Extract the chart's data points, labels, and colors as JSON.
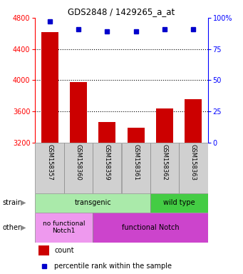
{
  "title": "GDS2848 / 1429265_a_at",
  "samples": [
    "GSM158357",
    "GSM158360",
    "GSM158359",
    "GSM158361",
    "GSM158362",
    "GSM158363"
  ],
  "counts": [
    4620,
    3980,
    3460,
    3390,
    3640,
    3760
  ],
  "percentiles": [
    97,
    91,
    89,
    89,
    91,
    91
  ],
  "ylim_left": [
    3200,
    4800
  ],
  "ylim_right": [
    0,
    100
  ],
  "yticks_left": [
    3200,
    3600,
    4000,
    4400,
    4800
  ],
  "yticks_right": [
    0,
    25,
    50,
    75,
    100
  ],
  "bar_color": "#cc0000",
  "dot_color": "#0000cc",
  "strain_transgenic_color": "#aaeaaa",
  "strain_wildtype_color": "#44cc44",
  "other_nofunc_color": "#ee99ee",
  "other_func_color": "#cc44cc",
  "strain_label_transgenic": "transgenic",
  "strain_label_wildtype": "wild type",
  "other_label_nofunc": "no functional\nNotch1",
  "other_label_func": "functional Notch",
  "row_label_strain": "strain",
  "row_label_other": "other",
  "legend_count": "count",
  "legend_percentile": "percentile rank within the sample",
  "plot_bg": "#ffffff",
  "xtick_bg": "#d0d0d0"
}
